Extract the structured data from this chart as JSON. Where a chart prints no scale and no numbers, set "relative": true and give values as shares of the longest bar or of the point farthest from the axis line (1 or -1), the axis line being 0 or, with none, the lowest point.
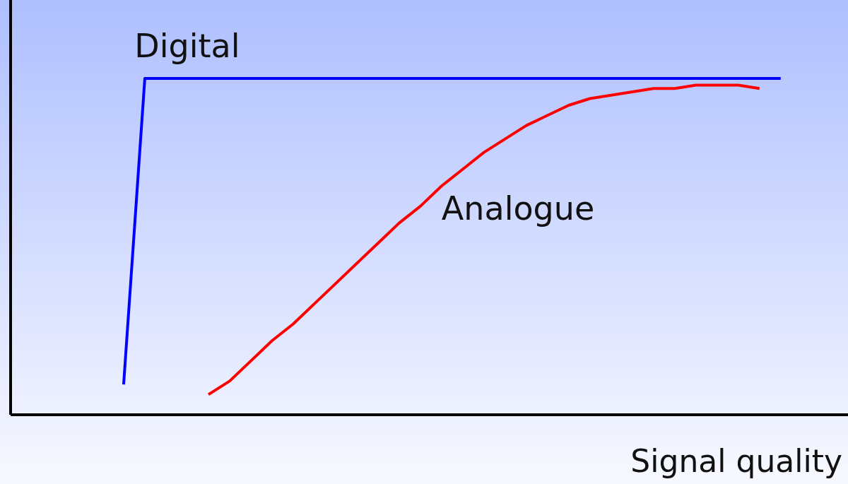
{
  "chart_data": {
    "type": "line",
    "relative": true,
    "xlabel": "Signal quality",
    "categories": [
      null,
      null,
      null,
      null,
      null,
      null,
      null,
      null,
      null,
      null,
      null,
      null,
      null,
      null,
      null,
      null,
      null,
      null,
      null,
      null,
      null,
      null,
      null,
      null,
      null,
      null,
      null,
      null,
      null,
      null,
      null,
      null
    ],
    "series": [
      {
        "name": "Digital",
        "color": "#0000ff",
        "values": [
          0.09,
          1,
          1,
          1,
          1,
          1,
          1,
          1,
          1,
          1,
          1,
          1,
          1,
          1,
          1,
          1,
          1,
          1,
          1,
          1,
          1,
          1,
          1,
          1,
          1,
          1,
          1,
          1,
          1,
          1,
          1,
          1
        ]
      },
      {
        "name": "Analogue",
        "color": "#ff0000",
        "values": [
          null,
          null,
          null,
          null,
          0.06,
          0.1,
          0.16,
          0.22,
          0.27,
          0.33,
          0.39,
          0.45,
          0.51,
          0.57,
          0.62,
          0.68,
          0.73,
          0.78,
          0.82,
          0.86,
          0.89,
          0.92,
          0.94,
          0.95,
          0.96,
          0.97,
          0.97,
          0.98,
          0.98,
          0.98,
          0.97,
          null
        ]
      }
    ]
  }
}
